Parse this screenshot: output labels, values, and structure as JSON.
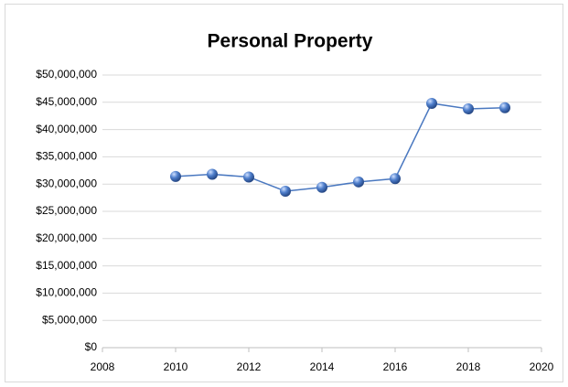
{
  "chart_data": {
    "type": "line",
    "title": "Personal Property",
    "x": [
      2010,
      2011,
      2012,
      2013,
      2014,
      2015,
      2016,
      2017,
      2018,
      2019
    ],
    "series": [
      {
        "name": "Personal Property",
        "color": "#4a78c0",
        "values": [
          31400000,
          31800000,
          31300000,
          28700000,
          29400000,
          30400000,
          31000000,
          44800000,
          43800000,
          44000000
        ]
      }
    ],
    "xlim": [
      2008,
      2020
    ],
    "xticks": [
      2008,
      2010,
      2012,
      2014,
      2016,
      2018,
      2020
    ],
    "ylim": [
      0,
      50000000
    ],
    "yticks": [
      {
        "value": 0,
        "label": "$0"
      },
      {
        "value": 5000000,
        "label": "$5,000,000"
      },
      {
        "value": 10000000,
        "label": "$10,000,000"
      },
      {
        "value": 15000000,
        "label": "$15,000,000"
      },
      {
        "value": 20000000,
        "label": "$20,000,000"
      },
      {
        "value": 25000000,
        "label": "$25,000,000"
      },
      {
        "value": 30000000,
        "label": "$30,000,000"
      },
      {
        "value": 35000000,
        "label": "$35,000,000"
      },
      {
        "value": 40000000,
        "label": "$40,000,000"
      },
      {
        "value": 45000000,
        "label": "$45,000,000"
      },
      {
        "value": 50000000,
        "label": "$50,000,000"
      }
    ],
    "grid": true
  }
}
